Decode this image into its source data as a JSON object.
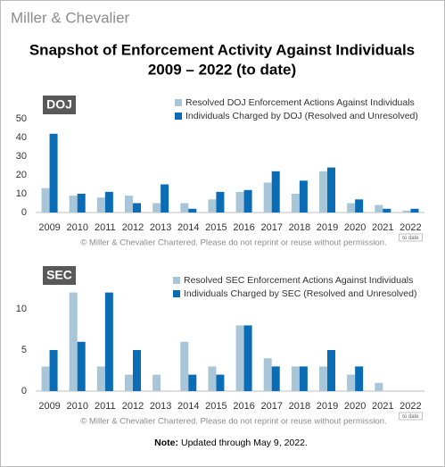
{
  "logo": "Miller & Chevalier",
  "title": "Snapshot of Enforcement Activity Against Individuals",
  "subtitle": "2009 – 2022 (to date)",
  "note_label": "Note:",
  "note_text": "Updated through May 9, 2022.",
  "chart_data": [
    {
      "type": "bar",
      "title": "DOJ",
      "categories": [
        "2009",
        "2010",
        "2011",
        "2012",
        "2013",
        "2014",
        "2015",
        "2016",
        "2017",
        "2018",
        "2019",
        "2020",
        "2021",
        "2022"
      ],
      "series": [
        {
          "name": "Resolved DOJ Enforcement Actions Against Individuals",
          "color": "#a9c6d8",
          "values": [
            13,
            9,
            8,
            9,
            5,
            5,
            7,
            11,
            16,
            10,
            22,
            5,
            4,
            1
          ]
        },
        {
          "name": "Individuals Charged by DOJ (Resolved and Unresolved)",
          "color": "#0b6cb6",
          "values": [
            42,
            10,
            11,
            5,
            15,
            2,
            11,
            12,
            22,
            17,
            24,
            7,
            2,
            2
          ]
        }
      ],
      "ylim": [
        0,
        50
      ],
      "yticks": [
        0,
        10,
        20,
        30,
        40,
        50
      ],
      "legend": "upper right",
      "annotation": "to date",
      "copyright": "© Miller & Chevalier Chartered. Please do not reprint or reuse without permission."
    },
    {
      "type": "bar",
      "title": "SEC",
      "categories": [
        "2009",
        "2010",
        "2011",
        "2012",
        "2013",
        "2014",
        "2015",
        "2016",
        "2017",
        "2018",
        "2019",
        "2020",
        "2021",
        "2022"
      ],
      "series": [
        {
          "name": "Resolved SEC Enforcement Actions Against Individuals",
          "color": "#a9c6d8",
          "values": [
            3,
            12,
            3,
            2,
            2,
            6,
            3,
            8,
            4,
            3,
            3,
            2,
            1,
            0
          ]
        },
        {
          "name": "Individuals Charged by SEC (Resolved and Unresolved)",
          "color": "#0b6cb6",
          "values": [
            5,
            6,
            12,
            5,
            0,
            2,
            2,
            8,
            3,
            3,
            5,
            3,
            0,
            0
          ]
        }
      ],
      "ylim": [
        0,
        15
      ],
      "yticks": [
        0,
        5,
        10
      ],
      "legend": "upper right",
      "annotation": "to date",
      "copyright": "© Miller & Chevalier Chartered. Please do not reprint or reuse without permission."
    }
  ]
}
